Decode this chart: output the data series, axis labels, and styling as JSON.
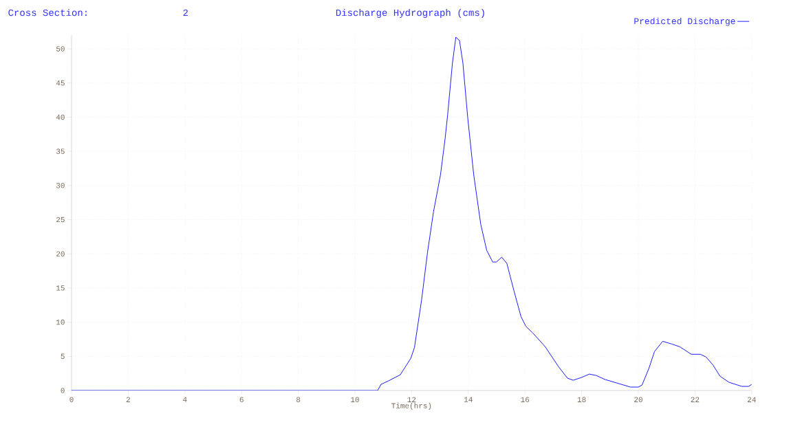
{
  "chart_data": {
    "type": "line",
    "title": "Discharge Hydrograph (cms)",
    "annotations": [
      "Cross Section:",
      "2"
    ],
    "xlabel": "Time(hrs)",
    "xlim": [
      0,
      24
    ],
    "ylim": [
      0,
      52
    ],
    "xticks": [
      0,
      2,
      4,
      6,
      8,
      10,
      12,
      14,
      16,
      18,
      20,
      22,
      24
    ],
    "yticks": [
      0,
      5,
      10,
      15,
      20,
      25,
      30,
      35,
      40,
      45,
      50
    ],
    "grid": true,
    "legend": "top right",
    "line_style": "solid",
    "series": [
      {
        "name": "Predicted Discharge",
        "color": "#1a1aff",
        "x": [
          0,
          10.8,
          10.92,
          11.18,
          11.6,
          11.97,
          12.1,
          12.35,
          12.56,
          12.77,
          13.02,
          13.18,
          13.27,
          13.44,
          13.56,
          13.69,
          13.81,
          13.98,
          14.19,
          14.44,
          14.65,
          14.86,
          14.99,
          15.18,
          15.36,
          15.61,
          15.86,
          16.03,
          16.28,
          16.65,
          16.73,
          17.18,
          17.5,
          17.7,
          17.99,
          18.27,
          18.51,
          18.83,
          19.24,
          19.72,
          20.0,
          20.13,
          20.37,
          20.57,
          20.86,
          21.18,
          21.46,
          21.87,
          22.19,
          22.39,
          22.64,
          22.88,
          23.2,
          23.65,
          23.89,
          24.0
        ],
        "values": [
          0,
          0,
          0.9,
          1.4,
          2.3,
          4.7,
          6.3,
          13.2,
          20.2,
          26.1,
          31.6,
          36.8,
          40.3,
          47.9,
          51.7,
          51.2,
          47.9,
          39.9,
          31.6,
          24.3,
          20.5,
          18.8,
          18.8,
          19.5,
          18.6,
          14.6,
          10.8,
          9.4,
          8.4,
          6.7,
          6.3,
          3.5,
          1.8,
          1.5,
          1.9,
          2.4,
          2.2,
          1.6,
          1.1,
          0.5,
          0.5,
          0.8,
          3.2,
          5.7,
          7.2,
          6.8,
          6.4,
          5.3,
          5.3,
          4.9,
          3.7,
          2.1,
          1.2,
          0.6,
          0.6,
          0.9
        ]
      }
    ]
  }
}
